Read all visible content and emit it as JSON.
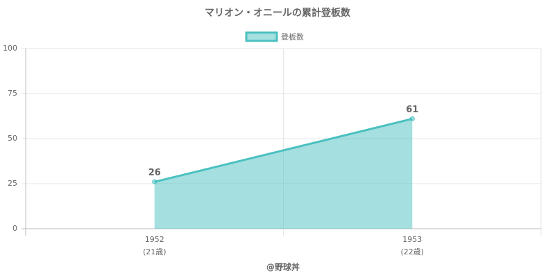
{
  "chart_data": {
    "type": "line",
    "title": "マリオン・オニールの累計登板数",
    "categories": [
      [
        "1952",
        "(21歳)"
      ],
      [
        "1953",
        "(22歳)"
      ]
    ],
    "series": [
      {
        "name": "登板数",
        "color": "#4bc0c0",
        "fill": "rgba(75,192,192,0.5)",
        "values": [
          26,
          61
        ]
      }
    ],
    "ylim": [
      0,
      100
    ],
    "yticks": [
      0,
      25,
      50,
      75,
      100
    ],
    "grid": true,
    "legend": "top",
    "x_label": "@野球丼",
    "data_labels": true
  }
}
